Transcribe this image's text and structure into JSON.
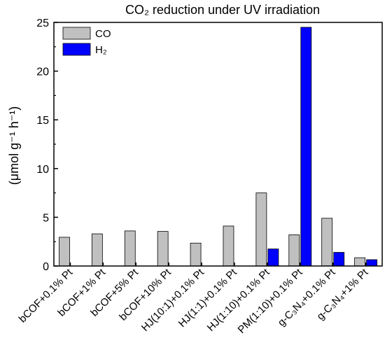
{
  "chart_data": {
    "type": "bar",
    "title": "CO₂ reduction under UV irradiation",
    "ylabel": "(μmol g⁻¹ h⁻¹)",
    "xlabel": "",
    "ylim": [
      0,
      25
    ],
    "yticks": [
      0,
      5,
      10,
      15,
      20,
      25
    ],
    "categories": [
      "bCOF+0.1% Pt",
      "bCOF+1% Pt",
      "bCOF+5% Pt",
      "bCOF+10% Pt",
      "HJ(10:1)+0.1% Pt",
      "HJ(1:1)+0.1% Pt",
      "HJ(1:10)+0.1% Pt",
      "PM(1:10)+0.1% Pt",
      "g-C₃N₄+0.1% Pt",
      "g-C₃N₄+1% Pt"
    ],
    "series": [
      {
        "name": "CO",
        "color": "#c0c0c0",
        "values": [
          2.95,
          3.3,
          3.6,
          3.55,
          2.35,
          4.1,
          7.5,
          3.2,
          4.9,
          0.85
        ]
      },
      {
        "name": "H₂",
        "color": "#0000ff",
        "values": [
          0,
          0,
          0,
          0,
          0,
          0,
          1.75,
          24.5,
          1.4,
          0.65
        ]
      }
    ],
    "legend": "top-left",
    "grid": false
  }
}
